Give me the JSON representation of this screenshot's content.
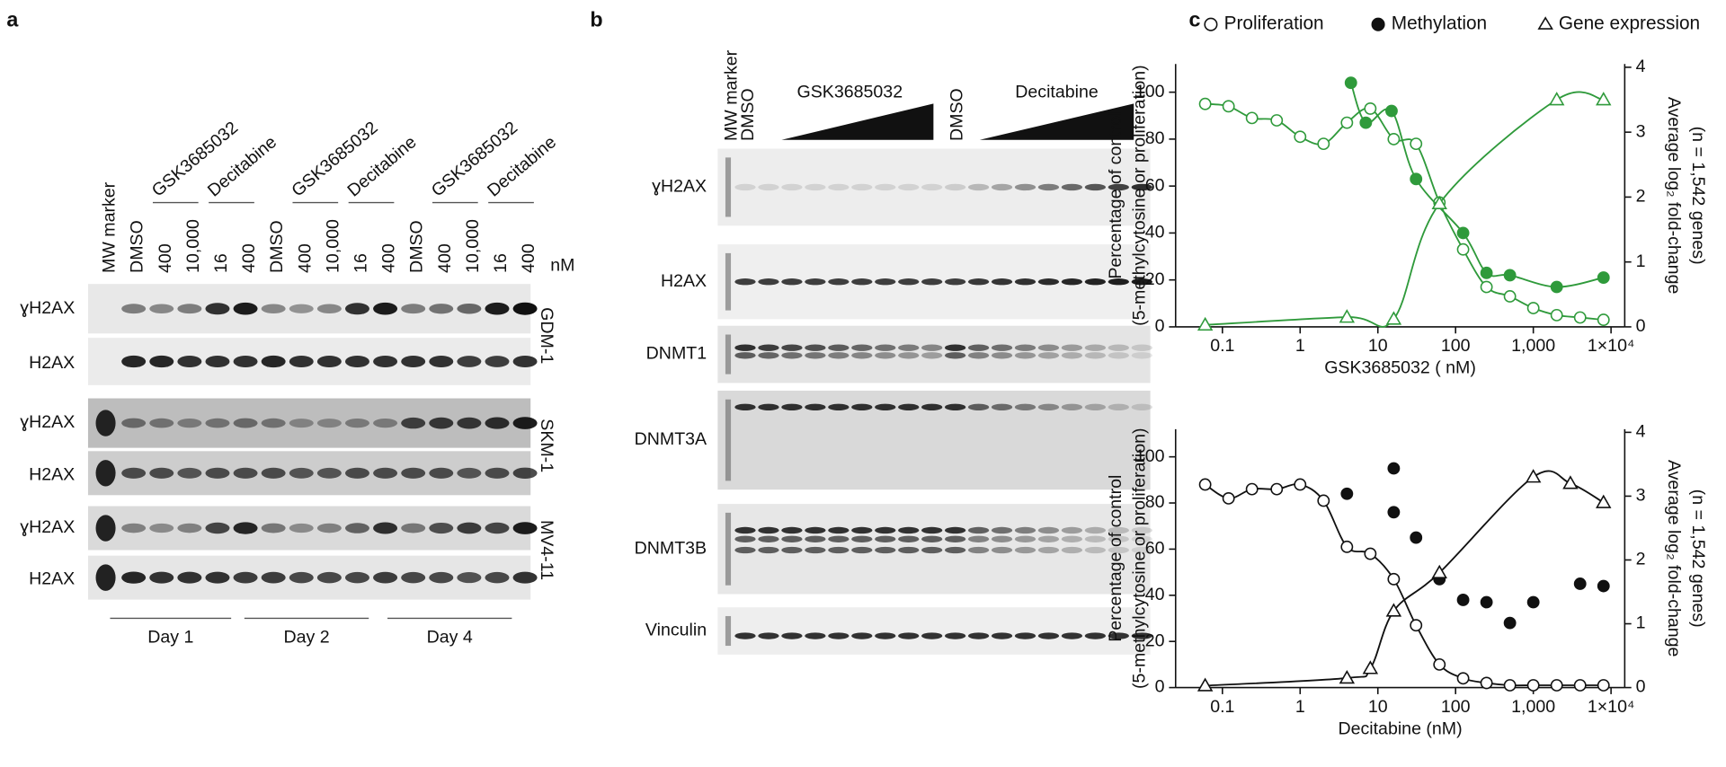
{
  "panels": {
    "a": {
      "label": "a",
      "lanes": [
        "MW marker",
        "DMSO",
        "400",
        "10,000",
        "16",
        "400",
        "DMSO",
        "400",
        "10,000",
        "16",
        "400",
        "DMSO",
        "400",
        "10,000",
        "16",
        "400"
      ],
      "groups": [
        "GSK3685032",
        "Decitabine",
        "GSK3685032",
        "Decitabine",
        "GSK3685032",
        "Decitabine"
      ],
      "unit": "nM",
      "rows": [
        "ɣH2AX",
        "H2AX",
        "ɣH2AX",
        "H2AX",
        "ɣH2AX",
        "H2AX"
      ],
      "cell_lines": [
        "GDM-1",
        "SKM-1",
        "MV4-11"
      ],
      "days": [
        "Day 1",
        "Day 2",
        "Day 4"
      ]
    },
    "b": {
      "label": "b",
      "lanes": [
        "MW marker",
        "DMSO",
        "DMSO"
      ],
      "groups": [
        "GSK3685032",
        "Decitabine"
      ],
      "rows": [
        "ɣH2AX",
        "H2AX",
        "DNMT1",
        "DNMT3A",
        "DNMT3B",
        "Vinculin"
      ]
    },
    "c": {
      "label": "c"
    }
  },
  "chart_data": [
    {
      "type": "line",
      "xlabel": "GSK3685032 ( nM)",
      "ylabel": [
        "Percentage of control",
        "(5-methylcytosine or proliferation)"
      ],
      "y2label": [
        "Average log₂ fold-change",
        "(n = 1,542 genes)"
      ],
      "xscale": "log",
      "xlim": [
        0.025,
        15000
      ],
      "xticks": [
        0.1,
        1,
        10,
        100,
        {
          "value": 1000,
          "label": "1,000"
        },
        {
          "value": 10000,
          "label": "1×10⁴"
        }
      ],
      "ylim": [
        0,
        112
      ],
      "yticks": [
        0,
        20,
        40,
        60,
        80,
        100
      ],
      "y2lim": [
        0,
        4.05
      ],
      "y2ticks": [
        0,
        1,
        2,
        3,
        4
      ],
      "legend": "top",
      "series": [
        {
          "name": "Proliferation",
          "color": "#2f9a3b",
          "marker": "open-circle",
          "line": true,
          "x": [
            0.06,
            0.12,
            0.24,
            0.5,
            1,
            2,
            4,
            8,
            16,
            31,
            62,
            125,
            250,
            500,
            1000,
            2000,
            4000,
            8000
          ],
          "values": [
            95,
            94,
            89,
            88,
            81,
            78,
            87,
            93,
            80,
            78,
            53,
            33,
            17,
            13,
            8,
            5,
            4,
            3
          ]
        },
        {
          "name": "Methylation",
          "color": "#2f9a3b",
          "marker": "filled-circle",
          "line": true,
          "x": [
            4.5,
            7,
            15,
            31,
            125,
            250,
            500,
            2000,
            8000
          ],
          "values": [
            104,
            87,
            92,
            63,
            40,
            23,
            22,
            17,
            21
          ]
        },
        {
          "name": "Gene expression",
          "color": "#2f9a3b",
          "marker": "triangle",
          "line": true,
          "axis": "y2",
          "x": [
            0.06,
            4,
            16,
            62,
            2000,
            8000
          ],
          "values": [
            0.03,
            0.15,
            0.12,
            1.9,
            3.5,
            3.5
          ]
        }
      ]
    },
    {
      "type": "line",
      "xlabel": "Decitabine (nM)",
      "ylabel": [
        "Percentage of control",
        "(5-methylcytosine or proliferation)"
      ],
      "y2label": [
        "Average log₂ fold-change",
        "(n = 1,542 genes)"
      ],
      "xscale": "log",
      "xlim": [
        0.025,
        15000
      ],
      "xticks": [
        0.1,
        1,
        10,
        100,
        {
          "value": 1000,
          "label": "1,000"
        },
        {
          "value": 10000,
          "label": "1×10⁴"
        }
      ],
      "ylim": [
        0,
        112
      ],
      "yticks": [
        0,
        20,
        40,
        60,
        80,
        100
      ],
      "y2lim": [
        0,
        4.05
      ],
      "y2ticks": [
        0,
        1,
        2,
        3,
        4
      ],
      "series": [
        {
          "color": "#111111",
          "marker": "open-circle",
          "line": true,
          "x": [
            0.06,
            0.12,
            0.24,
            0.5,
            1,
            2,
            4,
            8,
            16,
            31,
            62,
            125,
            250,
            500,
            1000,
            2000,
            4000,
            8000
          ],
          "values": [
            88,
            82,
            86,
            86,
            88,
            81,
            61,
            58,
            47,
            27,
            10,
            4,
            2,
            1,
            1,
            1,
            1,
            1
          ]
        },
        {
          "color": "#111111",
          "marker": "filled-circle",
          "line": false,
          "x": [
            4,
            16,
            16,
            31,
            62,
            125,
            250,
            500,
            1000,
            4000,
            8000
          ],
          "values": [
            84,
            95,
            76,
            65,
            47,
            38,
            37,
            28,
            37,
            45,
            44
          ]
        },
        {
          "color": "#111111",
          "marker": "triangle",
          "line": true,
          "axis": "y2",
          "x": [
            0.06,
            4,
            8,
            16,
            62,
            1000,
            3000,
            8000
          ],
          "values": [
            0.03,
            0.15,
            0.3,
            1.2,
            1.8,
            3.3,
            3.2,
            2.9
          ]
        }
      ]
    }
  ]
}
